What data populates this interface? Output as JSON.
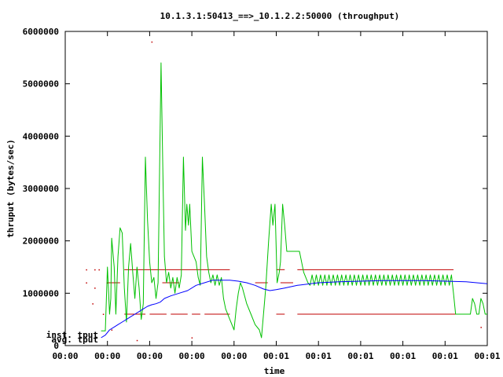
{
  "chart_data": {
    "type": "line",
    "title": "10.1.3.1:50413_==>_10.1.2.2:50000 (throughput)",
    "xlabel": "time",
    "ylabel": "thruput (bytes/sec)",
    "ylim": [
      0,
      6000000
    ],
    "xlim": [
      0,
      10
    ],
    "yticks": [
      0,
      1000000,
      2000000,
      3000000,
      4000000,
      5000000,
      6000000
    ],
    "xticks": [
      {
        "x": 0,
        "label": "00:00"
      },
      {
        "x": 1,
        "label": "00:00"
      },
      {
        "x": 2,
        "label": "00:00"
      },
      {
        "x": 3,
        "label": "00:00"
      },
      {
        "x": 4,
        "label": "00:00"
      },
      {
        "x": 5,
        "label": "00:01"
      },
      {
        "x": 6,
        "label": "00:01"
      },
      {
        "x": 7,
        "label": "00:01"
      },
      {
        "x": 8,
        "label": "00:01"
      },
      {
        "x": 9,
        "label": "00:01"
      },
      {
        "x": 10,
        "label": "00:01"
      }
    ],
    "grid": false,
    "legend_position": "bottom-left",
    "series": [
      {
        "name": "inst. tput",
        "color": "#00c000",
        "points": [
          [
            0.85,
            280000
          ],
          [
            0.95,
            280000
          ],
          [
            1.0,
            1500000
          ],
          [
            1.05,
            600000
          ],
          [
            1.08,
            900000
          ],
          [
            1.1,
            2050000
          ],
          [
            1.16,
            1500000
          ],
          [
            1.2,
            600000
          ],
          [
            1.25,
            1700000
          ],
          [
            1.3,
            2250000
          ],
          [
            1.35,
            2150000
          ],
          [
            1.4,
            1100000
          ],
          [
            1.45,
            450000
          ],
          [
            1.5,
            1500000
          ],
          [
            1.55,
            1950000
          ],
          [
            1.6,
            1400000
          ],
          [
            1.65,
            900000
          ],
          [
            1.7,
            1500000
          ],
          [
            1.75,
            1100000
          ],
          [
            1.8,
            500000
          ],
          [
            1.85,
            800000
          ],
          [
            1.9,
            3600000
          ],
          [
            1.95,
            2400000
          ],
          [
            2.0,
            1600000
          ],
          [
            2.05,
            1200000
          ],
          [
            2.1,
            1300000
          ],
          [
            2.15,
            900000
          ],
          [
            2.2,
            1200000
          ],
          [
            2.27,
            5400000
          ],
          [
            2.32,
            3000000
          ],
          [
            2.35,
            1700000
          ],
          [
            2.4,
            1200000
          ],
          [
            2.45,
            1400000
          ],
          [
            2.5,
            1100000
          ],
          [
            2.55,
            1300000
          ],
          [
            2.6,
            1000000
          ],
          [
            2.65,
            1300000
          ],
          [
            2.7,
            1100000
          ],
          [
            2.75,
            1350000
          ],
          [
            2.8,
            3600000
          ],
          [
            2.85,
            2200000
          ],
          [
            2.88,
            2700000
          ],
          [
            2.92,
            2300000
          ],
          [
            2.95,
            2700000
          ],
          [
            3.0,
            1800000
          ],
          [
            3.05,
            1700000
          ],
          [
            3.1,
            1600000
          ],
          [
            3.15,
            1300000
          ],
          [
            3.2,
            1150000
          ],
          [
            3.25,
            3600000
          ],
          [
            3.3,
            2700000
          ],
          [
            3.35,
            1700000
          ],
          [
            3.4,
            1400000
          ],
          [
            3.45,
            1200000
          ],
          [
            3.5,
            1350000
          ],
          [
            3.55,
            1150000
          ],
          [
            3.6,
            1350000
          ],
          [
            3.65,
            1150000
          ],
          [
            3.7,
            1300000
          ],
          [
            3.75,
            900000
          ],
          [
            3.8,
            700000
          ],
          [
            3.9,
            500000
          ],
          [
            4.0,
            300000
          ],
          [
            4.05,
            700000
          ],
          [
            4.1,
            1000000
          ],
          [
            4.15,
            1200000
          ],
          [
            4.2,
            1100000
          ],
          [
            4.3,
            800000
          ],
          [
            4.4,
            600000
          ],
          [
            4.5,
            400000
          ],
          [
            4.6,
            300000
          ],
          [
            4.65,
            150000
          ],
          [
            4.75,
            1100000
          ],
          [
            4.82,
            2000000
          ],
          [
            4.88,
            2700000
          ],
          [
            4.92,
            2300000
          ],
          [
            4.97,
            2700000
          ],
          [
            5.02,
            1200000
          ],
          [
            5.07,
            1400000
          ],
          [
            5.1,
            1600000
          ],
          [
            5.15,
            2700000
          ],
          [
            5.2,
            2300000
          ],
          [
            5.25,
            1800000
          ],
          [
            5.5,
            1800000
          ],
          [
            5.55,
            1800000
          ],
          [
            5.65,
            1400000
          ],
          [
            5.7,
            1300000
          ],
          [
            5.75,
            1200000
          ],
          [
            5.8,
            1150000
          ],
          [
            5.85,
            1350000
          ],
          [
            5.9,
            1150000
          ],
          [
            5.95,
            1350000
          ],
          [
            6.0,
            1150000
          ],
          [
            6.05,
            1350000
          ],
          [
            6.1,
            1150000
          ],
          [
            6.15,
            1350000
          ],
          [
            6.2,
            1150000
          ],
          [
            6.25,
            1350000
          ],
          [
            6.3,
            1150000
          ],
          [
            6.35,
            1350000
          ],
          [
            6.4,
            1150000
          ],
          [
            6.45,
            1350000
          ],
          [
            6.5,
            1150000
          ],
          [
            6.55,
            1350000
          ],
          [
            6.6,
            1150000
          ],
          [
            6.65,
            1350000
          ],
          [
            6.7,
            1150000
          ],
          [
            6.75,
            1350000
          ],
          [
            6.8,
            1150000
          ],
          [
            6.85,
            1350000
          ],
          [
            6.9,
            1150000
          ],
          [
            6.95,
            1350000
          ],
          [
            7.0,
            1150000
          ],
          [
            7.05,
            1350000
          ],
          [
            7.1,
            1150000
          ],
          [
            7.15,
            1350000
          ],
          [
            7.2,
            1150000
          ],
          [
            7.25,
            1350000
          ],
          [
            7.3,
            1150000
          ],
          [
            7.35,
            1350000
          ],
          [
            7.4,
            1150000
          ],
          [
            7.45,
            1350000
          ],
          [
            7.5,
            1150000
          ],
          [
            7.55,
            1350000
          ],
          [
            7.6,
            1150000
          ],
          [
            7.65,
            1350000
          ],
          [
            7.7,
            1150000
          ],
          [
            7.75,
            1350000
          ],
          [
            7.8,
            1150000
          ],
          [
            7.85,
            1350000
          ],
          [
            7.9,
            1150000
          ],
          [
            7.95,
            1350000
          ],
          [
            8.0,
            1150000
          ],
          [
            8.05,
            1350000
          ],
          [
            8.1,
            1150000
          ],
          [
            8.15,
            1350000
          ],
          [
            8.2,
            1150000
          ],
          [
            8.25,
            1350000
          ],
          [
            8.3,
            1150000
          ],
          [
            8.35,
            1350000
          ],
          [
            8.4,
            1150000
          ],
          [
            8.45,
            1350000
          ],
          [
            8.5,
            1150000
          ],
          [
            8.55,
            1350000
          ],
          [
            8.6,
            1150000
          ],
          [
            8.65,
            1350000
          ],
          [
            8.7,
            1150000
          ],
          [
            8.75,
            1350000
          ],
          [
            8.8,
            1150000
          ],
          [
            8.85,
            1350000
          ],
          [
            8.9,
            1150000
          ],
          [
            8.95,
            1350000
          ],
          [
            9.0,
            1150000
          ],
          [
            9.05,
            1350000
          ],
          [
            9.1,
            1150000
          ],
          [
            9.15,
            1350000
          ],
          [
            9.2,
            1000000
          ],
          [
            9.25,
            600000
          ],
          [
            9.6,
            600000
          ],
          [
            9.65,
            900000
          ],
          [
            9.7,
            800000
          ],
          [
            9.75,
            600000
          ],
          [
            9.8,
            600000
          ],
          [
            9.85,
            900000
          ],
          [
            9.9,
            800000
          ],
          [
            9.95,
            600000
          ],
          [
            10.0,
            600000
          ]
        ]
      },
      {
        "name": "avg. tput",
        "color": "#0000ff",
        "points": [
          [
            0.85,
            150000
          ],
          [
            0.95,
            200000
          ],
          [
            1.05,
            300000
          ],
          [
            1.15,
            350000
          ],
          [
            1.25,
            400000
          ],
          [
            1.35,
            450000
          ],
          [
            1.45,
            500000
          ],
          [
            1.55,
            550000
          ],
          [
            1.65,
            600000
          ],
          [
            1.75,
            650000
          ],
          [
            1.85,
            700000
          ],
          [
            1.95,
            750000
          ],
          [
            2.05,
            780000
          ],
          [
            2.15,
            800000
          ],
          [
            2.25,
            830000
          ],
          [
            2.35,
            900000
          ],
          [
            2.5,
            950000
          ],
          [
            2.7,
            1000000
          ],
          [
            2.9,
            1050000
          ],
          [
            3.1,
            1150000
          ],
          [
            3.3,
            1200000
          ],
          [
            3.5,
            1250000
          ],
          [
            3.7,
            1250000
          ],
          [
            3.9,
            1250000
          ],
          [
            4.1,
            1230000
          ],
          [
            4.3,
            1200000
          ],
          [
            4.5,
            1150000
          ],
          [
            4.7,
            1080000
          ],
          [
            4.85,
            1050000
          ],
          [
            5.0,
            1070000
          ],
          [
            5.2,
            1100000
          ],
          [
            5.5,
            1150000
          ],
          [
            6.0,
            1200000
          ],
          [
            6.5,
            1220000
          ],
          [
            7.0,
            1230000
          ],
          [
            7.5,
            1240000
          ],
          [
            8.0,
            1240000
          ],
          [
            8.5,
            1240000
          ],
          [
            9.0,
            1230000
          ],
          [
            9.5,
            1220000
          ],
          [
            10.0,
            1180000
          ]
        ]
      }
    ],
    "reference_segments": {
      "color": "#c00000",
      "segments": [
        [
          1.4,
          3.9,
          1450000
        ],
        [
          5.0,
          5.2,
          1450000
        ],
        [
          5.5,
          9.2,
          1450000
        ],
        [
          1.4,
          1.9,
          600000
        ],
        [
          2.0,
          2.4,
          600000
        ],
        [
          2.5,
          2.9,
          600000
        ],
        [
          3.0,
          3.2,
          600000
        ],
        [
          3.3,
          3.9,
          600000
        ],
        [
          5.0,
          5.2,
          600000
        ],
        [
          5.5,
          9.6,
          600000
        ],
        [
          1.0,
          1.3,
          1200000
        ],
        [
          2.3,
          2.7,
          1200000
        ],
        [
          4.5,
          4.8,
          1200000
        ],
        [
          5.1,
          5.4,
          1200000
        ]
      ]
    },
    "scatter_points": {
      "color": "#c00000",
      "points": [
        [
          0.5,
          1450000
        ],
        [
          0.7,
          1450000
        ],
        [
          0.8,
          1450000
        ],
        [
          0.5,
          1200000
        ],
        [
          0.7,
          1100000
        ],
        [
          0.65,
          800000
        ],
        [
          1.0,
          1200000
        ],
        [
          2.05,
          5800000
        ],
        [
          0.9,
          600000
        ],
        [
          1.1,
          300000
        ],
        [
          1.7,
          100000
        ],
        [
          3.0,
          150000
        ],
        [
          9.85,
          350000
        ]
      ]
    }
  }
}
